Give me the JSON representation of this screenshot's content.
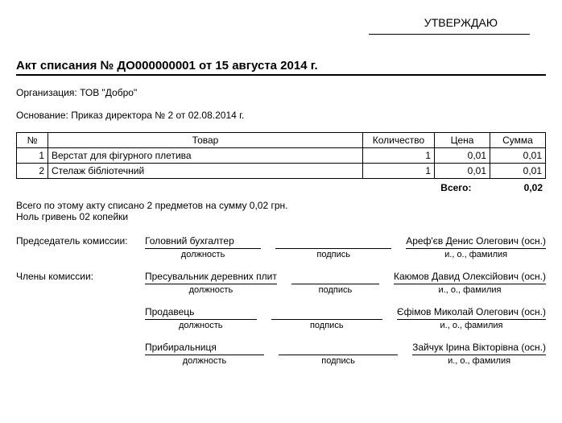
{
  "approve": "УТВЕРЖДАЮ",
  "title": "Акт списания № ДО000000001 от 15 августа 2014 г.",
  "org_label": "Организация:",
  "org_value": "ТОВ \"Добро\"",
  "basis_label": "Основание:",
  "basis_value": "Приказ директора № 2 от 02.08.2014 г.",
  "table": {
    "headers": {
      "num": "№",
      "name": "Товар",
      "qty": "Количество",
      "price": "Цена",
      "sum": "Сумма"
    },
    "rows": [
      {
        "num": "1",
        "name": "Верстат для фігурного плетива",
        "qty": "1",
        "price": "0,01",
        "sum": "0,01"
      },
      {
        "num": "2",
        "name": "Стелаж бібліотечний",
        "qty": "1",
        "price": "0,01",
        "sum": "0,01"
      }
    ],
    "total_label": "Всего:",
    "total_value": "0,02"
  },
  "summary1": "Всего по этому акту списано 2 предметов на сумму 0,02 грн.",
  "summary2": "Ноль гривень 02 копейки",
  "sig": {
    "chair_label": "Председатель комиссии:",
    "members_label": "Члены комиссии:",
    "caption_position": "должность",
    "caption_sign": "подпись",
    "caption_name": "и., о., фамилия",
    "rows": [
      {
        "role_key": "chair_label",
        "position": "Головний бухгалтер",
        "name": "Ареф'єв Денис Олегович (осн.)"
      },
      {
        "role_key": "members_label",
        "position": "Пресувальник деревних плит",
        "name": "Каюмов Давид Олексійович (осн.)"
      },
      {
        "role_key": "",
        "position": "Продавець",
        "name": "Єфімов Миколай Олегович (осн.)"
      },
      {
        "role_key": "",
        "position": "Прибиральниця",
        "name": "Зайчук Ірина Вікторівна (осн.)"
      }
    ]
  }
}
